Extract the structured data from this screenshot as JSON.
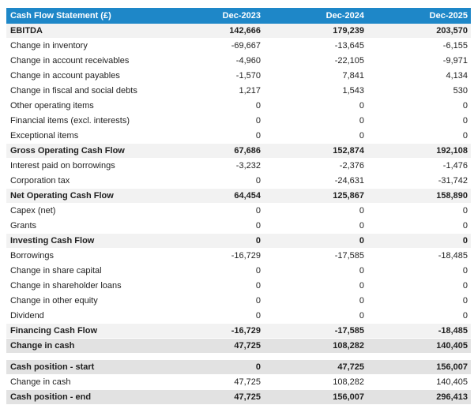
{
  "chart_data": {
    "type": "table",
    "title": "Cash Flow Statement (£)",
    "columns": [
      "Dec-2023",
      "Dec-2024",
      "Dec-2025"
    ],
    "rows": [
      {
        "label": "EBITDA",
        "values": [
          142666,
          179239,
          203570
        ],
        "style": "subtotal"
      },
      {
        "label": "Change in inventory",
        "values": [
          -69667,
          -13645,
          -6155
        ],
        "style": "normal"
      },
      {
        "label": "Change in account receivables",
        "values": [
          -4960,
          -22105,
          -9971
        ],
        "style": "normal"
      },
      {
        "label": "Change in account payables",
        "values": [
          -1570,
          7841,
          4134
        ],
        "style": "normal"
      },
      {
        "label": "Change in fiscal and social debts",
        "values": [
          1217,
          1543,
          530
        ],
        "style": "normal"
      },
      {
        "label": "Other operating items",
        "values": [
          0,
          0,
          0
        ],
        "style": "normal"
      },
      {
        "label": "Financial items (excl. interests)",
        "values": [
          0,
          0,
          0
        ],
        "style": "normal"
      },
      {
        "label": "Exceptional items",
        "values": [
          0,
          0,
          0
        ],
        "style": "normal"
      },
      {
        "label": "Gross Operating Cash Flow",
        "values": [
          67686,
          152874,
          192108
        ],
        "style": "subtotal"
      },
      {
        "label": "Interest paid on borrowings",
        "values": [
          -3232,
          -2376,
          -1476
        ],
        "style": "normal"
      },
      {
        "label": "Corporation tax",
        "values": [
          0,
          -24631,
          -31742
        ],
        "style": "normal"
      },
      {
        "label": "Net Operating Cash Flow",
        "values": [
          64454,
          125867,
          158890
        ],
        "style": "subtotal"
      },
      {
        "label": "Capex (net)",
        "values": [
          0,
          0,
          0
        ],
        "style": "normal"
      },
      {
        "label": "Grants",
        "values": [
          0,
          0,
          0
        ],
        "style": "normal"
      },
      {
        "label": "Investing Cash Flow",
        "values": [
          0,
          0,
          0
        ],
        "style": "subtotal"
      },
      {
        "label": "Borrowings",
        "values": [
          -16729,
          -17585,
          -18485
        ],
        "style": "normal"
      },
      {
        "label": "Change in share capital",
        "values": [
          0,
          0,
          0
        ],
        "style": "normal"
      },
      {
        "label": "Change in shareholder loans",
        "values": [
          0,
          0,
          0
        ],
        "style": "normal"
      },
      {
        "label": "Change in other equity",
        "values": [
          0,
          0,
          0
        ],
        "style": "normal"
      },
      {
        "label": "Dividend",
        "values": [
          0,
          0,
          0
        ],
        "style": "normal"
      },
      {
        "label": "Financing Cash Flow",
        "values": [
          -16729,
          -17585,
          -18485
        ],
        "style": "subtotal"
      },
      {
        "label": "Change in cash",
        "values": [
          47725,
          108282,
          140405
        ],
        "style": "total"
      },
      {
        "label": "Cash position - start",
        "values": [
          0,
          47725,
          156007
        ],
        "style": "total",
        "spacer_before": true
      },
      {
        "label": "Change in cash",
        "values": [
          47725,
          108282,
          140405
        ],
        "style": "normal"
      },
      {
        "label": "Cash position - end",
        "values": [
          47725,
          156007,
          296413
        ],
        "style": "total"
      }
    ]
  },
  "colors": {
    "header_bg": "#1e87c8",
    "header_text": "#ffffff",
    "subtotal_row_bg": "#f2f2f2",
    "total_row_bg": "#e2e2e2",
    "body_text": "#1f1f1f"
  }
}
